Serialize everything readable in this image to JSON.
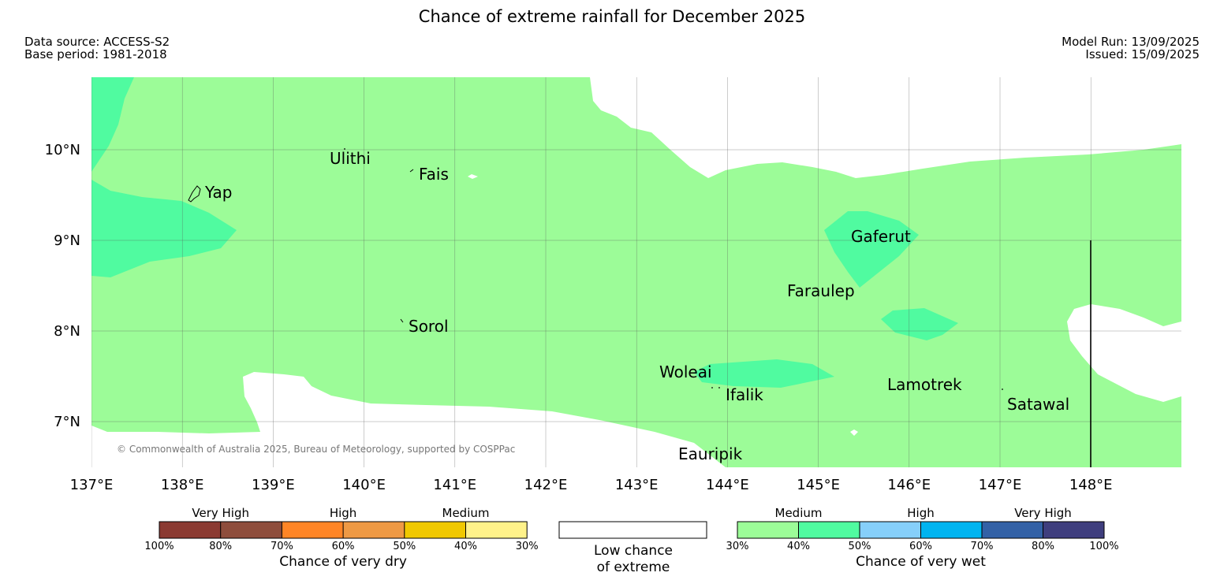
{
  "title": "Chance of extreme rainfall for December 2025",
  "meta": {
    "data_source": "Data source: ACCESS-S2",
    "base_period": "Base period: 1981-2018",
    "model_run": "Model Run: 13/09/2025",
    "issued": "Issued: 15/09/2025"
  },
  "map": {
    "lat_labels": [
      "10°N",
      "9°N",
      "8°N",
      "7°N"
    ],
    "lon_labels": [
      "137°E",
      "138°E",
      "139°E",
      "140°E",
      "141°E",
      "142°E",
      "143°E",
      "144°E",
      "145°E",
      "146°E",
      "147°E",
      "148°E"
    ],
    "places": {
      "ulithi": "Ulithi",
      "fais": "Fais",
      "yap": "Yap",
      "sorol": "Sorol",
      "gaferut": "Gaferut",
      "faraulep": "Faraulep",
      "woleai": "Woleai",
      "ifalik": "Ifalik",
      "lamotrek": "Lamotrek",
      "satawal": "Satawal",
      "eauripik": "Eauripik"
    },
    "copyright": "© Commonwealth of Australia 2025, Bureau of Meteorology, supported by COSPPac"
  },
  "legend": {
    "dry": {
      "groups": [
        "Very High",
        "High",
        "Medium"
      ],
      "colors": [
        "#8b3a32",
        "#8e4d3c",
        "#ff8526",
        "#ee9944",
        "#f0c800",
        "#fff28a"
      ],
      "ticks": [
        "100%",
        "80%",
        "70%",
        "60%",
        "50%",
        "40%",
        "30%"
      ],
      "caption": "Chance of very dry"
    },
    "neutral": {
      "caption_line1": "Low chance",
      "caption_line2": "of extreme",
      "color": "#ffffff"
    },
    "wet": {
      "groups": [
        "Medium",
        "High",
        "Very High"
      ],
      "colors": [
        "#9cfc98",
        "#50fba0",
        "#86cffa",
        "#00b4f0",
        "#3361a6",
        "#3f3e7e"
      ],
      "ticks": [
        "30%",
        "40%",
        "50%",
        "60%",
        "70%",
        "80%",
        "100%"
      ],
      "caption": "Chance of very wet"
    }
  }
}
